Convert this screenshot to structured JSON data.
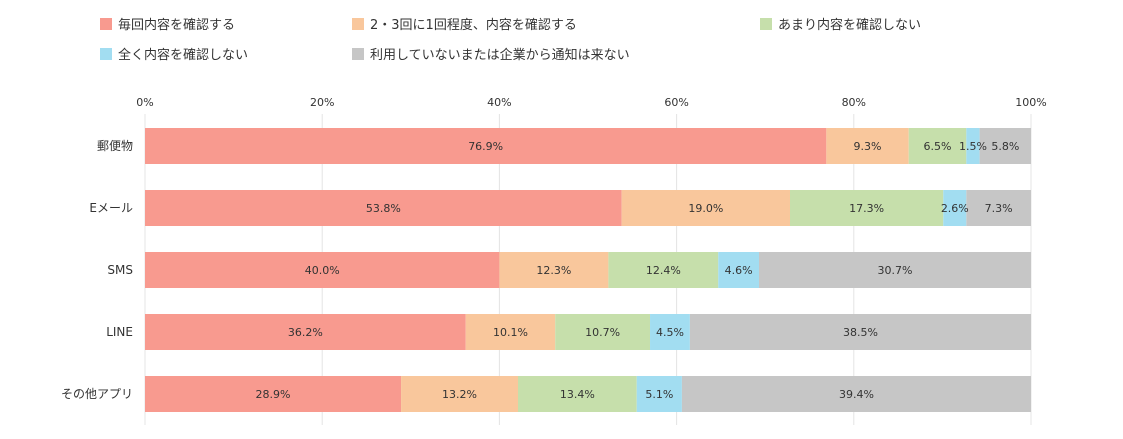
{
  "colors": {
    "daily": "#F89A8F",
    "sometimes": "#F9C79C",
    "rarely": "#C6DFAB",
    "never": "#A2DDF1",
    "none": "#C6C6C6",
    "grid": "#E4E4E4"
  },
  "legend": [
    {
      "label": "毎回内容を確認する",
      "color": "#F89A8F"
    },
    {
      "label": "2・3回に1回程度、内容を確認する",
      "color": "#F9C79C"
    },
    {
      "label": "あまり内容を確認しない",
      "color": "#C6DFAB"
    },
    {
      "label": "全く内容を確認しない",
      "color": "#A2DDF1"
    },
    {
      "label": "利用していないまたは企業から通知は来ない",
      "color": "#C6C6C6"
    }
  ],
  "chart_data": {
    "type": "bar",
    "orientation": "horizontal",
    "stacked": true,
    "percent_scale": true,
    "title": "",
    "xlabel": "",
    "ylabel": "",
    "xlim": [
      0,
      100
    ],
    "xticks": [
      "0%",
      "20%",
      "40%",
      "60%",
      "80%",
      "100%"
    ],
    "grid": true,
    "legend_position": "top",
    "categories": [
      "郵便物",
      "Eメール",
      "SMS",
      "LINE",
      "その他アプリ"
    ],
    "series": [
      {
        "name": "毎回内容を確認する",
        "color": "#F89A8F",
        "values": [
          76.9,
          53.8,
          40.0,
          36.2,
          28.9
        ],
        "labels": [
          "76.9%",
          "53.8%",
          "40.0%",
          "36.2%",
          "28.9%"
        ]
      },
      {
        "name": "2・3回に1回程度、内容を確認する",
        "color": "#F9C79C",
        "values": [
          9.3,
          19.0,
          12.3,
          10.1,
          13.2
        ],
        "labels": [
          "9.3%",
          "19.0%",
          "12.3%",
          "10.1%",
          "13.2%"
        ]
      },
      {
        "name": "あまり内容を確認しない",
        "color": "#C6DFAB",
        "values": [
          6.5,
          17.3,
          12.4,
          10.7,
          13.4
        ],
        "labels": [
          "6.5%",
          "17.3%",
          "12.4%",
          "10.7%",
          "13.4%"
        ]
      },
      {
        "name": "全く内容を確認しない",
        "color": "#A2DDF1",
        "values": [
          1.5,
          2.6,
          4.6,
          4.5,
          5.1
        ],
        "labels": [
          "1.5%",
          "2.6%",
          "4.6%",
          "4.5%",
          "5.1%"
        ]
      },
      {
        "name": "利用していないまたは企業から通知は来ない",
        "color": "#C6C6C6",
        "values": [
          5.8,
          7.3,
          30.7,
          38.5,
          39.4
        ],
        "labels": [
          "5.8%",
          "7.3%",
          "30.7%",
          "38.5%",
          "39.4%"
        ]
      }
    ]
  }
}
